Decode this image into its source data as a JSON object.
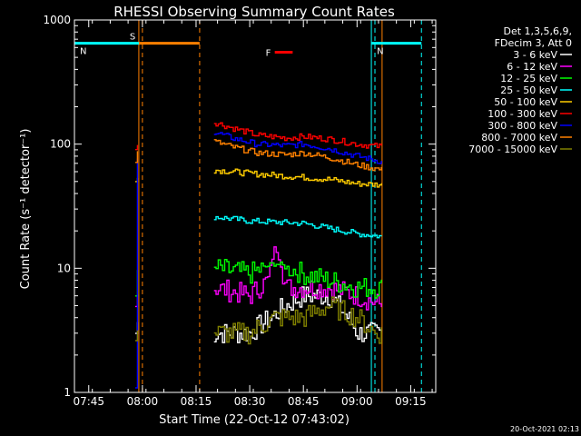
{
  "chart_data": {
    "type": "line",
    "title": "RHESSI Observing Summary Count Rates",
    "xlabel": "Start Time (22-Oct-12 07:43:02)",
    "ylabel": "Count Rate (s⁻¹ detector⁻¹)",
    "y_scale": "log",
    "ylim": [
      1,
      1000
    ],
    "xlim": [
      "07:41",
      "09:22"
    ],
    "x_ticks": [
      "07:45",
      "08:00",
      "08:15",
      "08:30",
      "08:45",
      "09:00",
      "09:15"
    ],
    "y_ticks": [
      "1",
      "10",
      "100",
      "1000"
    ],
    "grid": false,
    "legend_position": "right",
    "legend_header": [
      "Det 1,3,5,6,9,",
      "FDecim 3, Att 0"
    ],
    "series": [
      {
        "name": "3 - 6 keV",
        "color": "#ffffff",
        "segments": [
          {
            "x": [
              "07:58",
              "07:59"
            ],
            "values": [
              3,
              4
            ]
          },
          {
            "x": [
              "08:20",
              "08:30",
              "08:36",
              "08:40",
              "08:45",
              "08:52",
              "09:00",
              "09:05",
              "09:07"
            ],
            "values": [
              3,
              3,
              4,
              5,
              6,
              6,
              3,
              3,
              3
            ]
          }
        ]
      },
      {
        "name": "6 - 12 keV",
        "color": "#ff00ff",
        "segments": [
          {
            "x": [
              "07:58",
              "07:59"
            ],
            "values": [
              6,
              7
            ]
          },
          {
            "x": [
              "08:20",
              "08:30",
              "08:35",
              "08:37",
              "08:40",
              "08:45",
              "08:52",
              "09:00",
              "09:07"
            ],
            "values": [
              7,
              6,
              8,
              15,
              7,
              7,
              7,
              6,
              5
            ]
          }
        ]
      },
      {
        "name": "12 - 25 keV",
        "color": "#00ff00",
        "segments": [
          {
            "x": [
              "07:58",
              "07:59"
            ],
            "values": [
              7,
              9
            ]
          },
          {
            "x": [
              "08:20",
              "08:30",
              "08:37",
              "08:45",
              "08:52",
              "09:00",
              "09:07"
            ],
            "values": [
              10,
              9,
              11,
              9,
              8,
              7,
              7
            ]
          }
        ]
      },
      {
        "name": "25 - 50 keV",
        "color": "#00ffff",
        "segments": [
          {
            "x": [
              "08:20",
              "08:30",
              "08:45",
              "08:52",
              "09:00",
              "09:07"
            ],
            "values": [
              26,
              24,
              23,
              21,
              19,
              18
            ]
          }
        ]
      },
      {
        "name": "50 - 100 keV",
        "color": "#ffcc00",
        "segments": [
          {
            "x": [
              "07:58",
              "07:59"
            ],
            "values": [
              50,
              60
            ]
          },
          {
            "x": [
              "08:20",
              "08:30",
              "08:45",
              "08:52",
              "09:00",
              "09:07"
            ],
            "values": [
              62,
              58,
              54,
              52,
              48,
              47
            ]
          }
        ]
      },
      {
        "name": "100 - 300 keV",
        "color": "#ff0000",
        "segments": [
          {
            "x": [
              "07:58",
              "07:58.5",
              "07:59"
            ],
            "values": [
              95,
              100,
              98
            ]
          },
          {
            "x": [
              "08:20",
              "08:25",
              "08:32",
              "08:40",
              "08:45",
              "08:52",
              "09:00",
              "09:07"
            ],
            "values": [
              150,
              135,
              118,
              112,
              115,
              110,
              100,
              95
            ]
          }
        ]
      },
      {
        "name": "300 - 800 keV",
        "color": "#0000ff",
        "segments": [
          {
            "x": [
              "07:58",
              "07:58.5",
              "07:59"
            ],
            "values": [
              1,
              80,
              85
            ]
          },
          {
            "x": [
              "08:20",
              "08:25",
              "08:32",
              "08:40",
              "08:45",
              "08:52",
              "09:00",
              "09:07"
            ],
            "values": [
              125,
              112,
              100,
              97,
              100,
              92,
              80,
              72
            ]
          }
        ]
      },
      {
        "name": "800 - 7000 keV",
        "color": "#ff8000",
        "segments": [
          {
            "x": [
              "07:58",
              "07:58.5",
              "07:59"
            ],
            "values": [
              70,
              90,
              95
            ]
          },
          {
            "x": [
              "08:20",
              "08:25",
              "08:32",
              "08:40",
              "08:45",
              "08:52",
              "09:00",
              "09:07"
            ],
            "values": [
              105,
              95,
              85,
              82,
              85,
              78,
              68,
              62
            ]
          }
        ]
      },
      {
        "name": "7000 - 15000 keV",
        "color": "#808000",
        "segments": [
          {
            "x": [
              "07:58",
              "07:59"
            ],
            "values": [
              3,
              4
            ]
          },
          {
            "x": [
              "08:20",
              "08:30",
              "08:37",
              "08:45",
              "08:52",
              "09:00",
              "09:05",
              "09:07"
            ],
            "values": [
              3,
              3,
              4,
              4,
              5,
              4,
              3,
              3
            ]
          }
        ]
      }
    ],
    "annotations": [
      {
        "label": "S",
        "color": "#ff8000",
        "x": [
          "07:59",
          "08:16"
        ],
        "y": 650
      },
      {
        "label": "N",
        "color": "#00ffff",
        "x": [
          "07:41",
          "07:59"
        ],
        "y": 650
      },
      {
        "label": "N",
        "color": "#00ffff",
        "x": [
          "09:04",
          "09:18"
        ],
        "y": 650
      },
      {
        "label": "F",
        "color": "#ff0000",
        "x": [
          "08:37",
          "08:42"
        ],
        "y": 550
      }
    ],
    "vertical_markers": [
      {
        "x": "07:59",
        "color": "#ff8000",
        "style": "solid"
      },
      {
        "x": "08:00",
        "color": "#ff8000",
        "style": "dashed"
      },
      {
        "x": "08:16",
        "color": "#ff8000",
        "style": "dashed"
      },
      {
        "x": "09:04",
        "color": "#00ffff",
        "style": "solid"
      },
      {
        "x": "09:05",
        "color": "#00ffff",
        "style": "dashed"
      },
      {
        "x": "09:07",
        "color": "#ff8000",
        "style": "solid"
      },
      {
        "x": "09:18",
        "color": "#00ffff",
        "style": "dashed"
      }
    ]
  },
  "footer": {
    "timestamp": "20-Oct-2021 02:13"
  }
}
